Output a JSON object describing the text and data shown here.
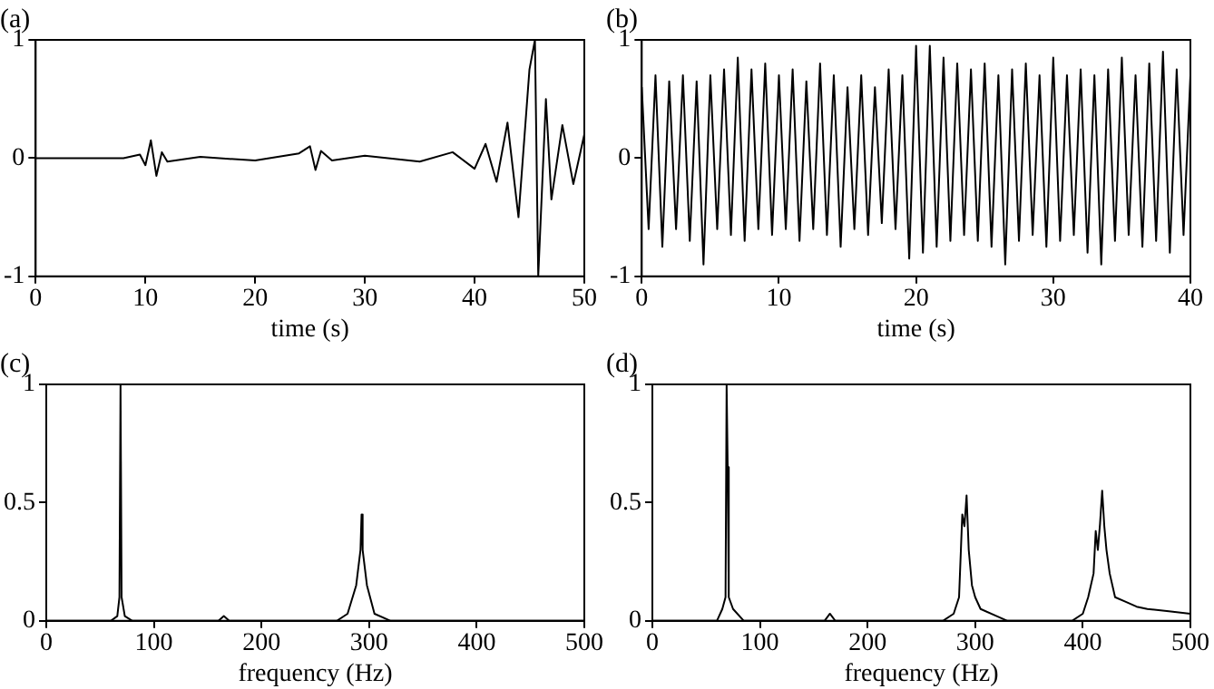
{
  "chart_data": [
    {
      "type": "line",
      "title": "(a)",
      "xlabel": "time (s)",
      "color": "#000000",
      "marker": "none",
      "legend": false,
      "grid": false,
      "x": [
        0,
        8,
        9.5,
        10,
        10.5,
        11,
        11.5,
        12,
        15,
        20,
        24,
        25,
        25.5,
        26,
        27,
        30,
        35,
        38,
        40,
        41,
        42,
        43,
        44,
        45,
        45.5,
        45.8,
        46.5,
        47,
        48,
        49,
        50
      ],
      "values": [
        0,
        0,
        0.03,
        -0.06,
        0.15,
        -0.15,
        0.05,
        -0.03,
        0.01,
        -0.02,
        0.04,
        0.1,
        -0.1,
        0.06,
        -0.02,
        0.02,
        -0.03,
        0.05,
        -0.09,
        0.12,
        -0.2,
        0.3,
        -0.5,
        0.75,
        1,
        -1,
        0.5,
        -0.35,
        0.28,
        -0.22,
        0.2
      ],
      "xlim": [
        0,
        50
      ],
      "ylim": [
        -1,
        1
      ],
      "xticks": [
        0,
        10,
        20,
        30,
        40,
        50
      ],
      "yticks": [
        -1,
        0,
        1
      ]
    },
    {
      "type": "line",
      "title": "(b)",
      "xlabel": "time (s)",
      "color": "#000000",
      "marker": "none",
      "legend": false,
      "grid": false,
      "x": [
        0,
        0.5,
        1,
        1.5,
        2,
        2.5,
        3,
        3.5,
        4,
        4.5,
        5,
        5.5,
        6,
        6.5,
        7,
        7.5,
        8,
        8.5,
        9,
        9.5,
        10,
        10.5,
        11,
        11.5,
        12,
        12.5,
        13,
        13.5,
        14,
        14.5,
        15,
        15.5,
        16,
        16.5,
        17,
        17.5,
        18,
        18.5,
        19,
        19.5,
        20,
        20.5,
        21,
        21.5,
        22,
        22.5,
        23,
        23.5,
        24,
        24.5,
        25,
        25.5,
        26,
        26.5,
        27,
        27.5,
        28,
        28.5,
        29,
        29.5,
        30,
        30.5,
        31,
        31.5,
        32,
        32.5,
        33,
        33.5,
        34,
        34.5,
        35,
        35.5,
        36,
        36.5,
        37,
        37.5,
        38,
        38.5,
        39,
        39.5,
        40
      ],
      "values": [
        0.6,
        -0.6,
        0.7,
        -0.75,
        0.65,
        -0.6,
        0.7,
        -0.7,
        0.65,
        -0.9,
        0.7,
        -0.6,
        0.75,
        -0.65,
        0.85,
        -0.7,
        0.75,
        -0.6,
        0.8,
        -0.65,
        0.7,
        -0.6,
        0.75,
        -0.7,
        0.65,
        -0.6,
        0.8,
        -0.65,
        0.7,
        -0.75,
        0.6,
        -0.6,
        0.7,
        -0.65,
        0.6,
        -0.55,
        0.75,
        -0.6,
        0.7,
        -0.85,
        0.95,
        -0.8,
        0.95,
        -0.75,
        0.85,
        -0.7,
        0.8,
        -0.65,
        0.75,
        -0.7,
        0.8,
        -0.75,
        0.7,
        -0.9,
        0.75,
        -0.7,
        0.8,
        -0.65,
        0.7,
        -0.75,
        0.85,
        -0.7,
        0.7,
        -0.65,
        0.75,
        -0.8,
        0.7,
        -0.9,
        0.75,
        -0.7,
        0.85,
        -0.65,
        0.7,
        -0.75,
        0.8,
        -0.7,
        0.9,
        -0.8,
        0.75,
        -0.65,
        0.7
      ],
      "xlim": [
        0,
        40
      ],
      "ylim": [
        -1,
        1
      ],
      "xticks": [
        0,
        10,
        20,
        30,
        40
      ],
      "yticks": [
        -1,
        0,
        1
      ]
    },
    {
      "type": "line",
      "title": "(c)",
      "xlabel": "frequency (Hz)",
      "color": "#000000",
      "marker": "none",
      "legend": false,
      "grid": false,
      "x": [
        0,
        60,
        66,
        68,
        69,
        70,
        73,
        80,
        160,
        165,
        170,
        270,
        280,
        288,
        292,
        293,
        294,
        298,
        305,
        320,
        500
      ],
      "values": [
        0,
        0,
        0.02,
        0.1,
        1,
        0.1,
        0.02,
        0,
        0,
        0.02,
        0,
        0,
        0.03,
        0.15,
        0.3,
        0.45,
        0.3,
        0.15,
        0.03,
        0,
        0
      ],
      "xlim": [
        0,
        500
      ],
      "ylim": [
        0,
        1
      ],
      "xticks": [
        0,
        100,
        200,
        300,
        400,
        500
      ],
      "yticks": [
        0,
        0.5,
        1
      ]
    },
    {
      "type": "line",
      "title": "(d)",
      "xlabel": "frequency (Hz)",
      "color": "#000000",
      "marker": "none",
      "legend": false,
      "grid": false,
      "x": [
        0,
        60,
        65,
        68,
        69,
        70,
        71,
        75,
        85,
        160,
        165,
        170,
        270,
        280,
        285,
        288,
        290,
        292,
        294,
        297,
        300,
        305,
        320,
        330,
        390,
        400,
        405,
        410,
        412,
        414,
        416,
        418,
        420,
        422,
        425,
        430,
        440,
        450,
        460,
        480,
        500
      ],
      "values": [
        0,
        0,
        0.05,
        0.1,
        1,
        0.65,
        0.1,
        0.05,
        0,
        0,
        0.03,
        0,
        0,
        0.03,
        0.1,
        0.45,
        0.4,
        0.53,
        0.3,
        0.15,
        0.1,
        0.05,
        0.02,
        0,
        0,
        0.03,
        0.1,
        0.2,
        0.38,
        0.3,
        0.41,
        0.55,
        0.4,
        0.3,
        0.2,
        0.1,
        0.08,
        0.06,
        0.05,
        0.04,
        0.03
      ],
      "xlim": [
        0,
        500
      ],
      "ylim": [
        0,
        1
      ],
      "xticks": [
        0,
        100,
        200,
        300,
        400,
        500
      ],
      "yticks": [
        0,
        0.5,
        1
      ]
    }
  ]
}
